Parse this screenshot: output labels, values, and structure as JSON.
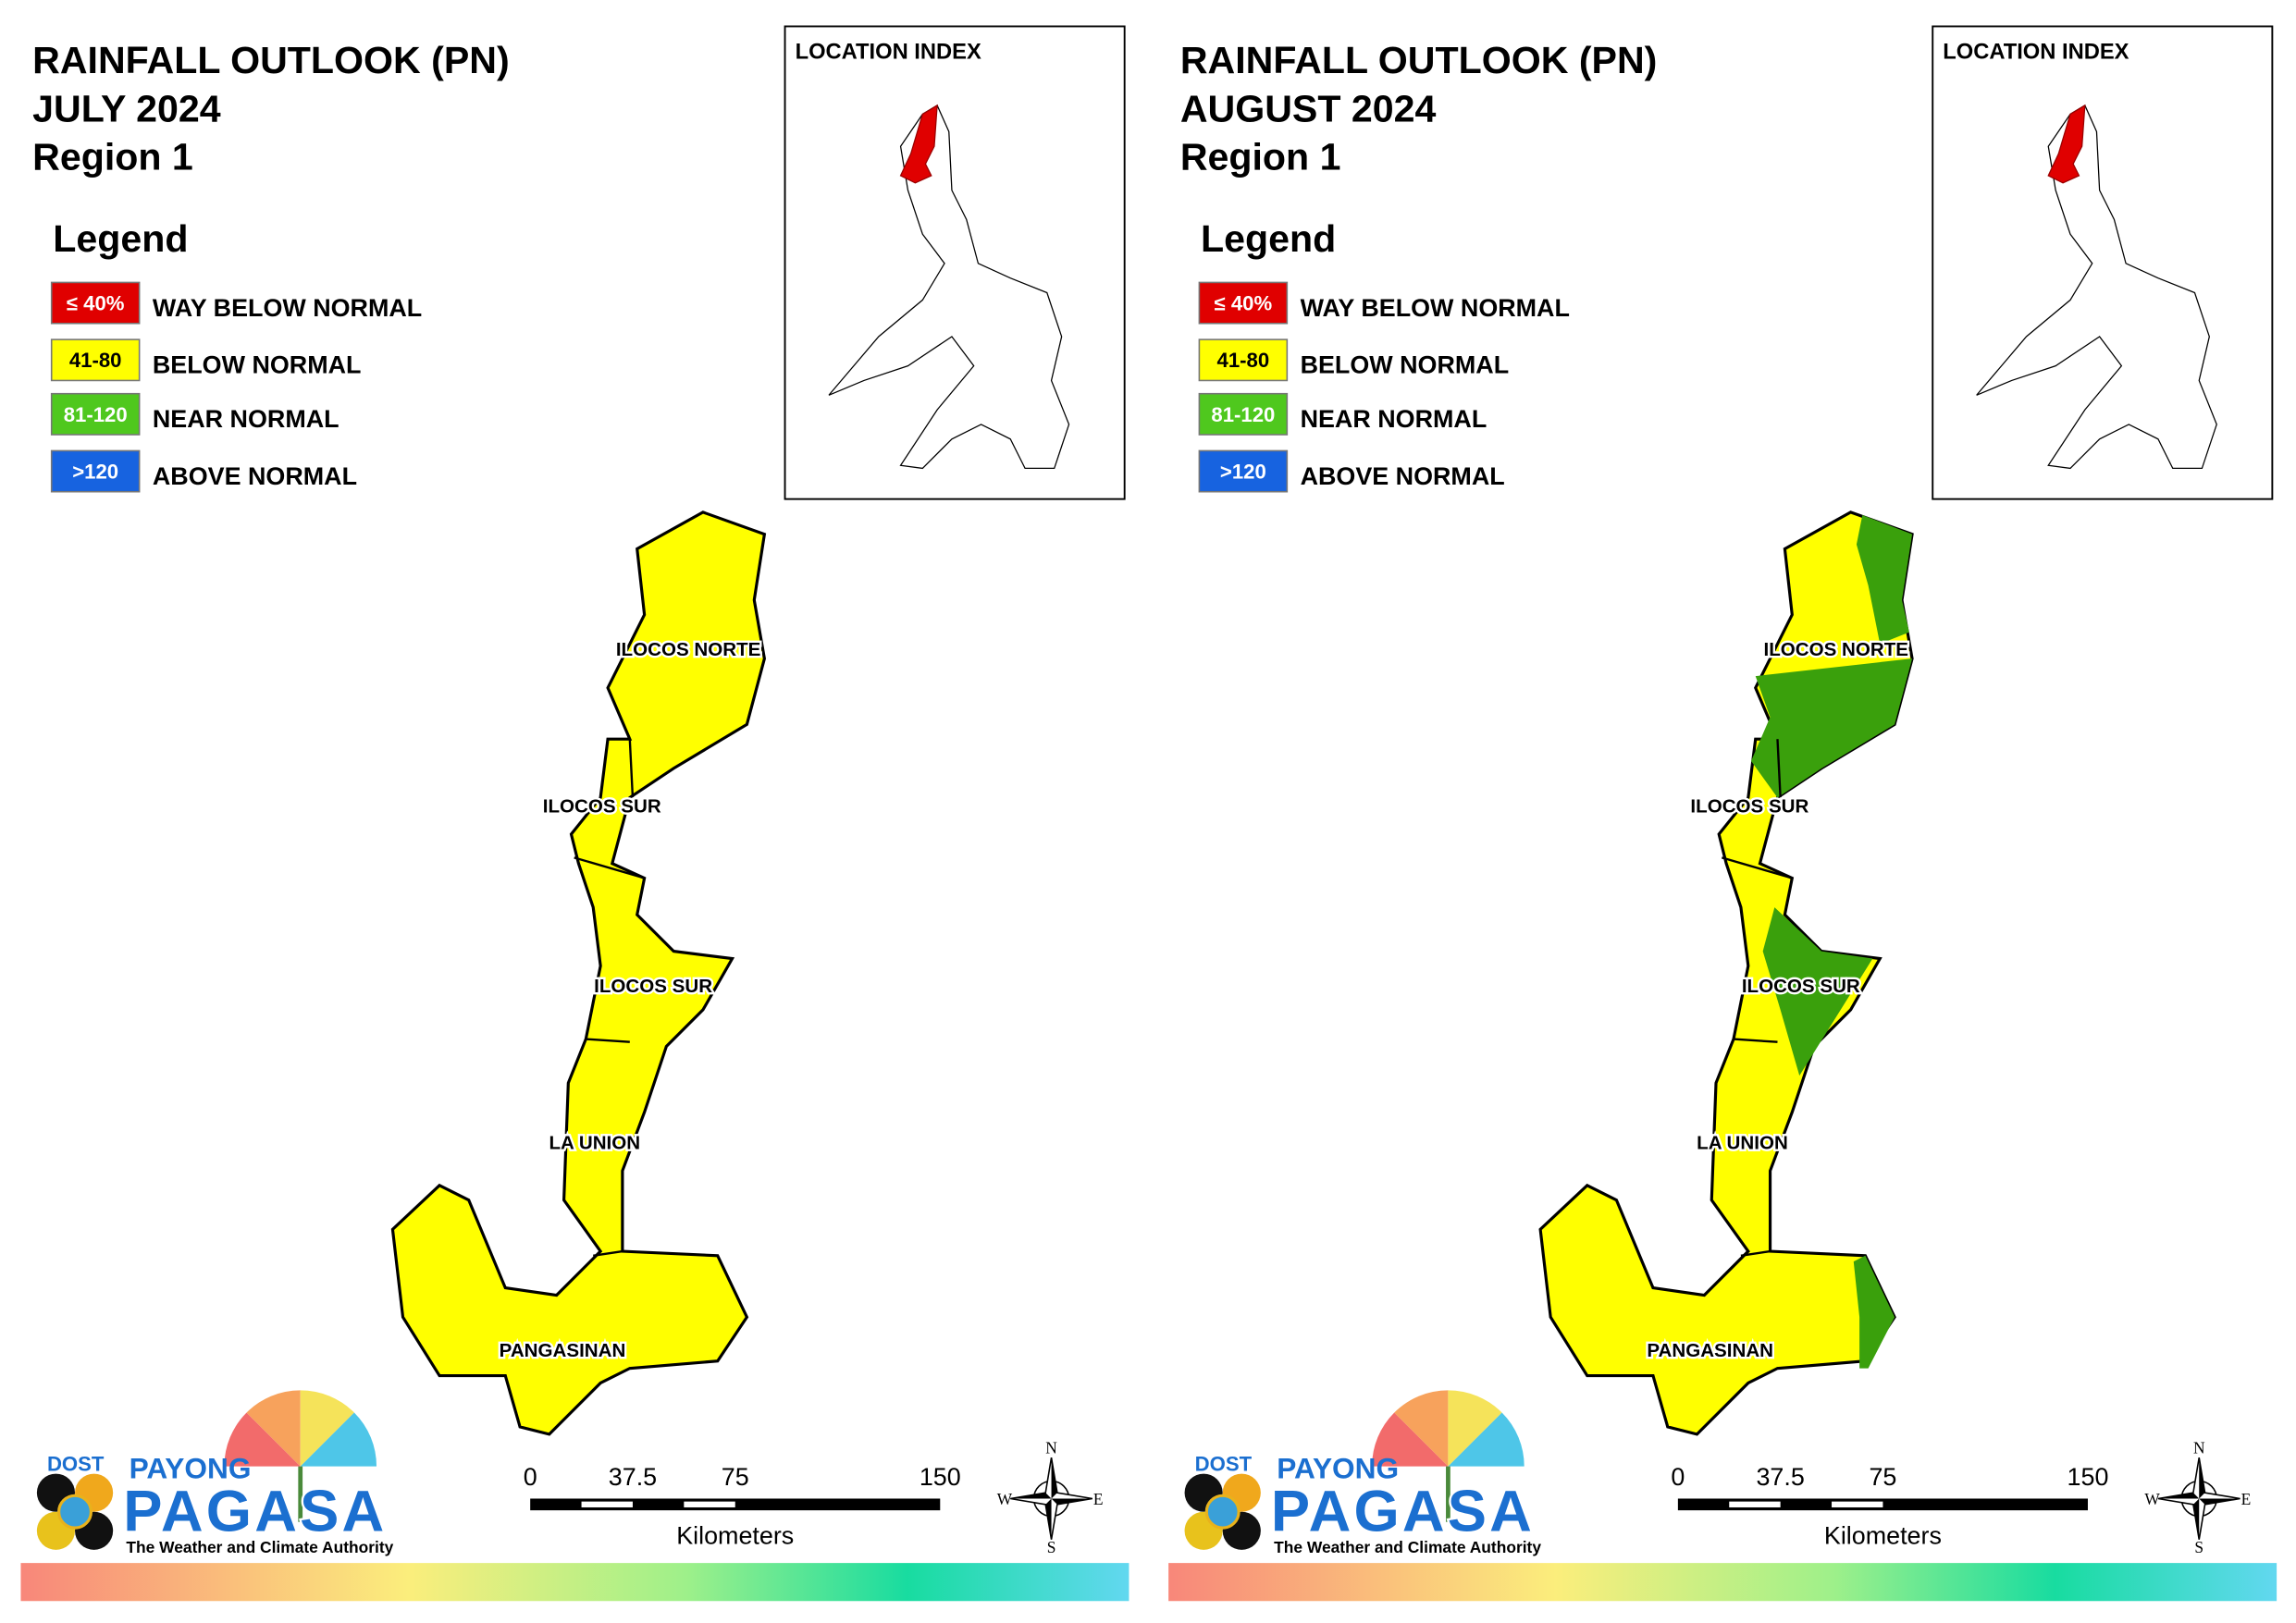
{
  "panels": [
    {
      "title": [
        "RAINFALL OUTLOOK (PN)",
        "JULY 2024",
        "Region 1"
      ],
      "legend_title": "Legend",
      "legend": [
        {
          "swatch": "≤ 40%",
          "label": "WAY BELOW NORMAL",
          "color": "#e00000"
        },
        {
          "swatch": "41-80",
          "label": "BELOW NORMAL",
          "color": "#ffff00"
        },
        {
          "swatch": "81-120",
          "label": "NEAR NORMAL",
          "color": "#4fc81e"
        },
        {
          "swatch": ">120",
          "label": "ABOVE NORMAL",
          "color": "#1763e0"
        }
      ],
      "location_index": "LOCATION INDEX",
      "provinces": [
        "ILOCOS NORTE",
        "ILOCOS SUR",
        "ILOCOS SUR",
        "LA UNION",
        "PANGASINAN"
      ],
      "scale": {
        "ticks": [
          0,
          37.5,
          75,
          150
        ],
        "unit": "Kilometers"
      },
      "compass": [
        "N",
        "E",
        "S",
        "W"
      ],
      "logo": {
        "dost": "DOST",
        "payong": "PAYONG",
        "pagasa": "PAGASA",
        "tagline": "The Weather and Climate Authority"
      }
    },
    {
      "title": [
        "RAINFALL OUTLOOK (PN)",
        "AUGUST 2024",
        "Region 1"
      ],
      "legend_title": "Legend",
      "legend": [
        {
          "swatch": "≤ 40%",
          "label": "WAY BELOW NORMAL",
          "color": "#e00000"
        },
        {
          "swatch": "41-80",
          "label": "BELOW NORMAL",
          "color": "#ffff00"
        },
        {
          "swatch": "81-120",
          "label": "NEAR NORMAL",
          "color": "#4fc81e"
        },
        {
          "swatch": ">120",
          "label": "ABOVE NORMAL",
          "color": "#1763e0"
        }
      ],
      "location_index": "LOCATION INDEX",
      "provinces": [
        "ILOCOS NORTE",
        "ILOCOS SUR",
        "ILOCOS SUR",
        "LA UNION",
        "PANGASINAN"
      ],
      "scale": {
        "ticks": [
          0,
          37.5,
          75,
          150
        ],
        "unit": "Kilometers"
      },
      "compass": [
        "N",
        "E",
        "S",
        "W"
      ],
      "logo": {
        "dost": "DOST",
        "payong": "PAYONG",
        "pagasa": "PAGASA",
        "tagline": "The Weather and Climate Authority"
      }
    }
  ]
}
